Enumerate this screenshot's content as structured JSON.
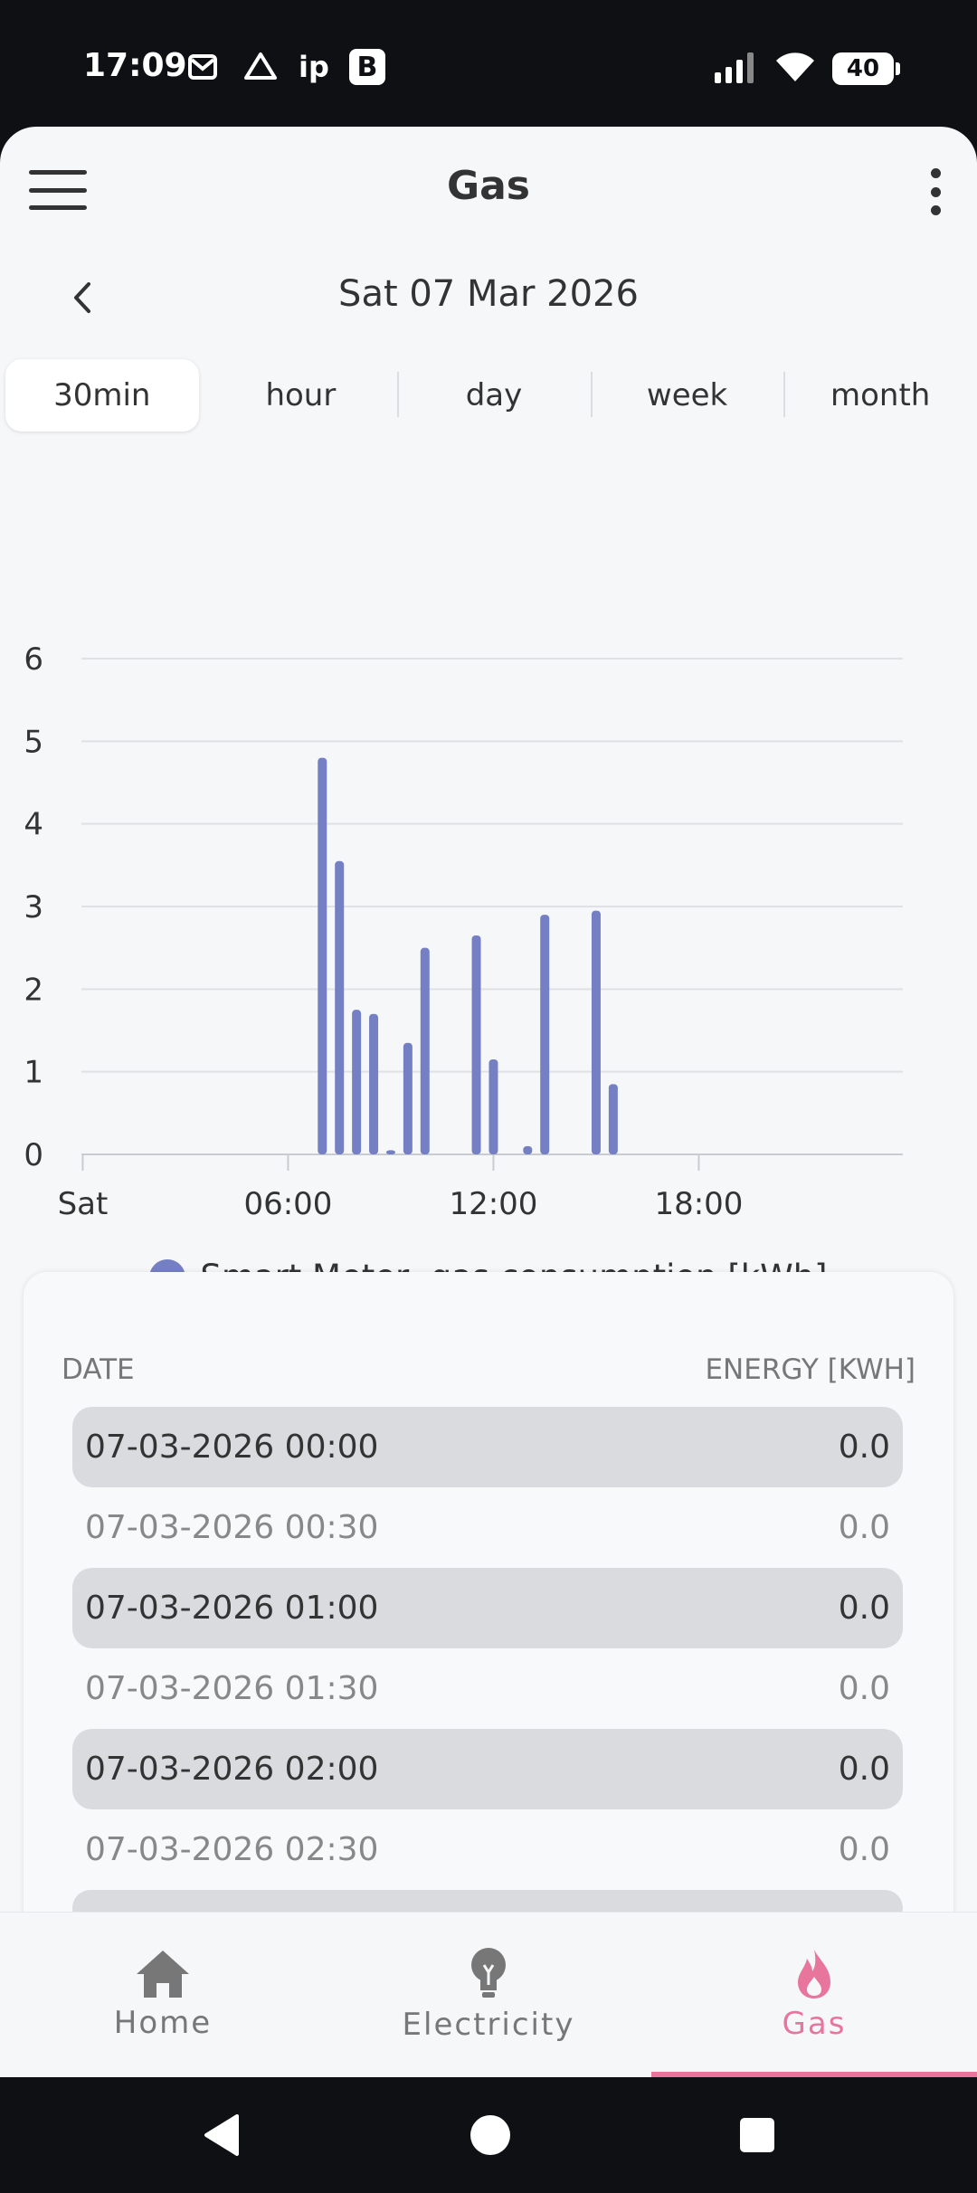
{
  "status_bar": {
    "time": "17:09",
    "left_icons": [
      "gmail-icon",
      "drive-icon",
      "ip",
      "B"
    ],
    "ip_text": "ip",
    "b_text": "B",
    "battery": "40"
  },
  "header": {
    "title": "Gas"
  },
  "date_nav": {
    "date": "Sat 07 Mar 2026"
  },
  "periods": [
    {
      "label": "30min",
      "active": true
    },
    {
      "label": "hour",
      "active": false
    },
    {
      "label": "day",
      "active": false
    },
    {
      "label": "week",
      "active": false
    },
    {
      "label": "month",
      "active": false
    }
  ],
  "chart_data": {
    "type": "bar",
    "x": [
      "00:00",
      "00:30",
      "01:00",
      "01:30",
      "02:00",
      "02:30",
      "03:00",
      "03:30",
      "04:00",
      "04:30",
      "05:00",
      "05:30",
      "06:00",
      "06:30",
      "07:00",
      "07:30",
      "08:00",
      "08:30",
      "09:00",
      "09:30",
      "10:00",
      "10:30",
      "11:00",
      "11:30",
      "12:00",
      "12:30",
      "13:00",
      "13:30",
      "14:00",
      "14:30",
      "15:00",
      "15:30",
      "16:00",
      "16:30",
      "17:00",
      "17:30",
      "18:00",
      "18:30",
      "19:00",
      "19:30",
      "20:00",
      "20:30",
      "21:00",
      "21:30",
      "22:00",
      "22:30",
      "23:00",
      "23:30"
    ],
    "series": [
      {
        "name": "Smart Meter, gas consumption [kWh]",
        "color": "#7580c4",
        "values": [
          0,
          0,
          0,
          0,
          0,
          0,
          0,
          0,
          0,
          0,
          0,
          0,
          0,
          0,
          4.8,
          3.55,
          1.75,
          1.7,
          0.05,
          1.35,
          2.5,
          0,
          0,
          2.65,
          1.15,
          0,
          0.1,
          2.9,
          0,
          0,
          2.95,
          0.85,
          0,
          0,
          0,
          0,
          0,
          0,
          0,
          0,
          0,
          0,
          0,
          0,
          0,
          0,
          0,
          0
        ]
      }
    ],
    "ylim": [
      0,
      6
    ],
    "yticks": [
      "0",
      "1",
      "2",
      "3",
      "4",
      "5",
      "6"
    ],
    "xticks": [
      "Sat",
      "06:00",
      "12:00",
      "18:00"
    ],
    "grid": true,
    "legend": "bottom"
  },
  "table": {
    "col_date": "DATE",
    "col_energy": "ENERGY [KWH]",
    "rows": [
      {
        "date": "07-03-2026 00:00",
        "energy": "0.0"
      },
      {
        "date": "07-03-2026 00:30",
        "energy": "0.0"
      },
      {
        "date": "07-03-2026 01:00",
        "energy": "0.0"
      },
      {
        "date": "07-03-2026 01:30",
        "energy": "0.0"
      },
      {
        "date": "07-03-2026 02:00",
        "energy": "0.0"
      },
      {
        "date": "07-03-2026 02:30",
        "energy": "0.0"
      }
    ]
  },
  "bottom_nav": [
    {
      "label": "Home",
      "icon": "home-icon",
      "active": false
    },
    {
      "label": "Electricity",
      "icon": "bulb-icon",
      "active": false
    },
    {
      "label": "Gas",
      "icon": "flame-icon",
      "active": true
    }
  ],
  "colors": {
    "accent": "#e8769c",
    "bar": "#7580c4"
  }
}
